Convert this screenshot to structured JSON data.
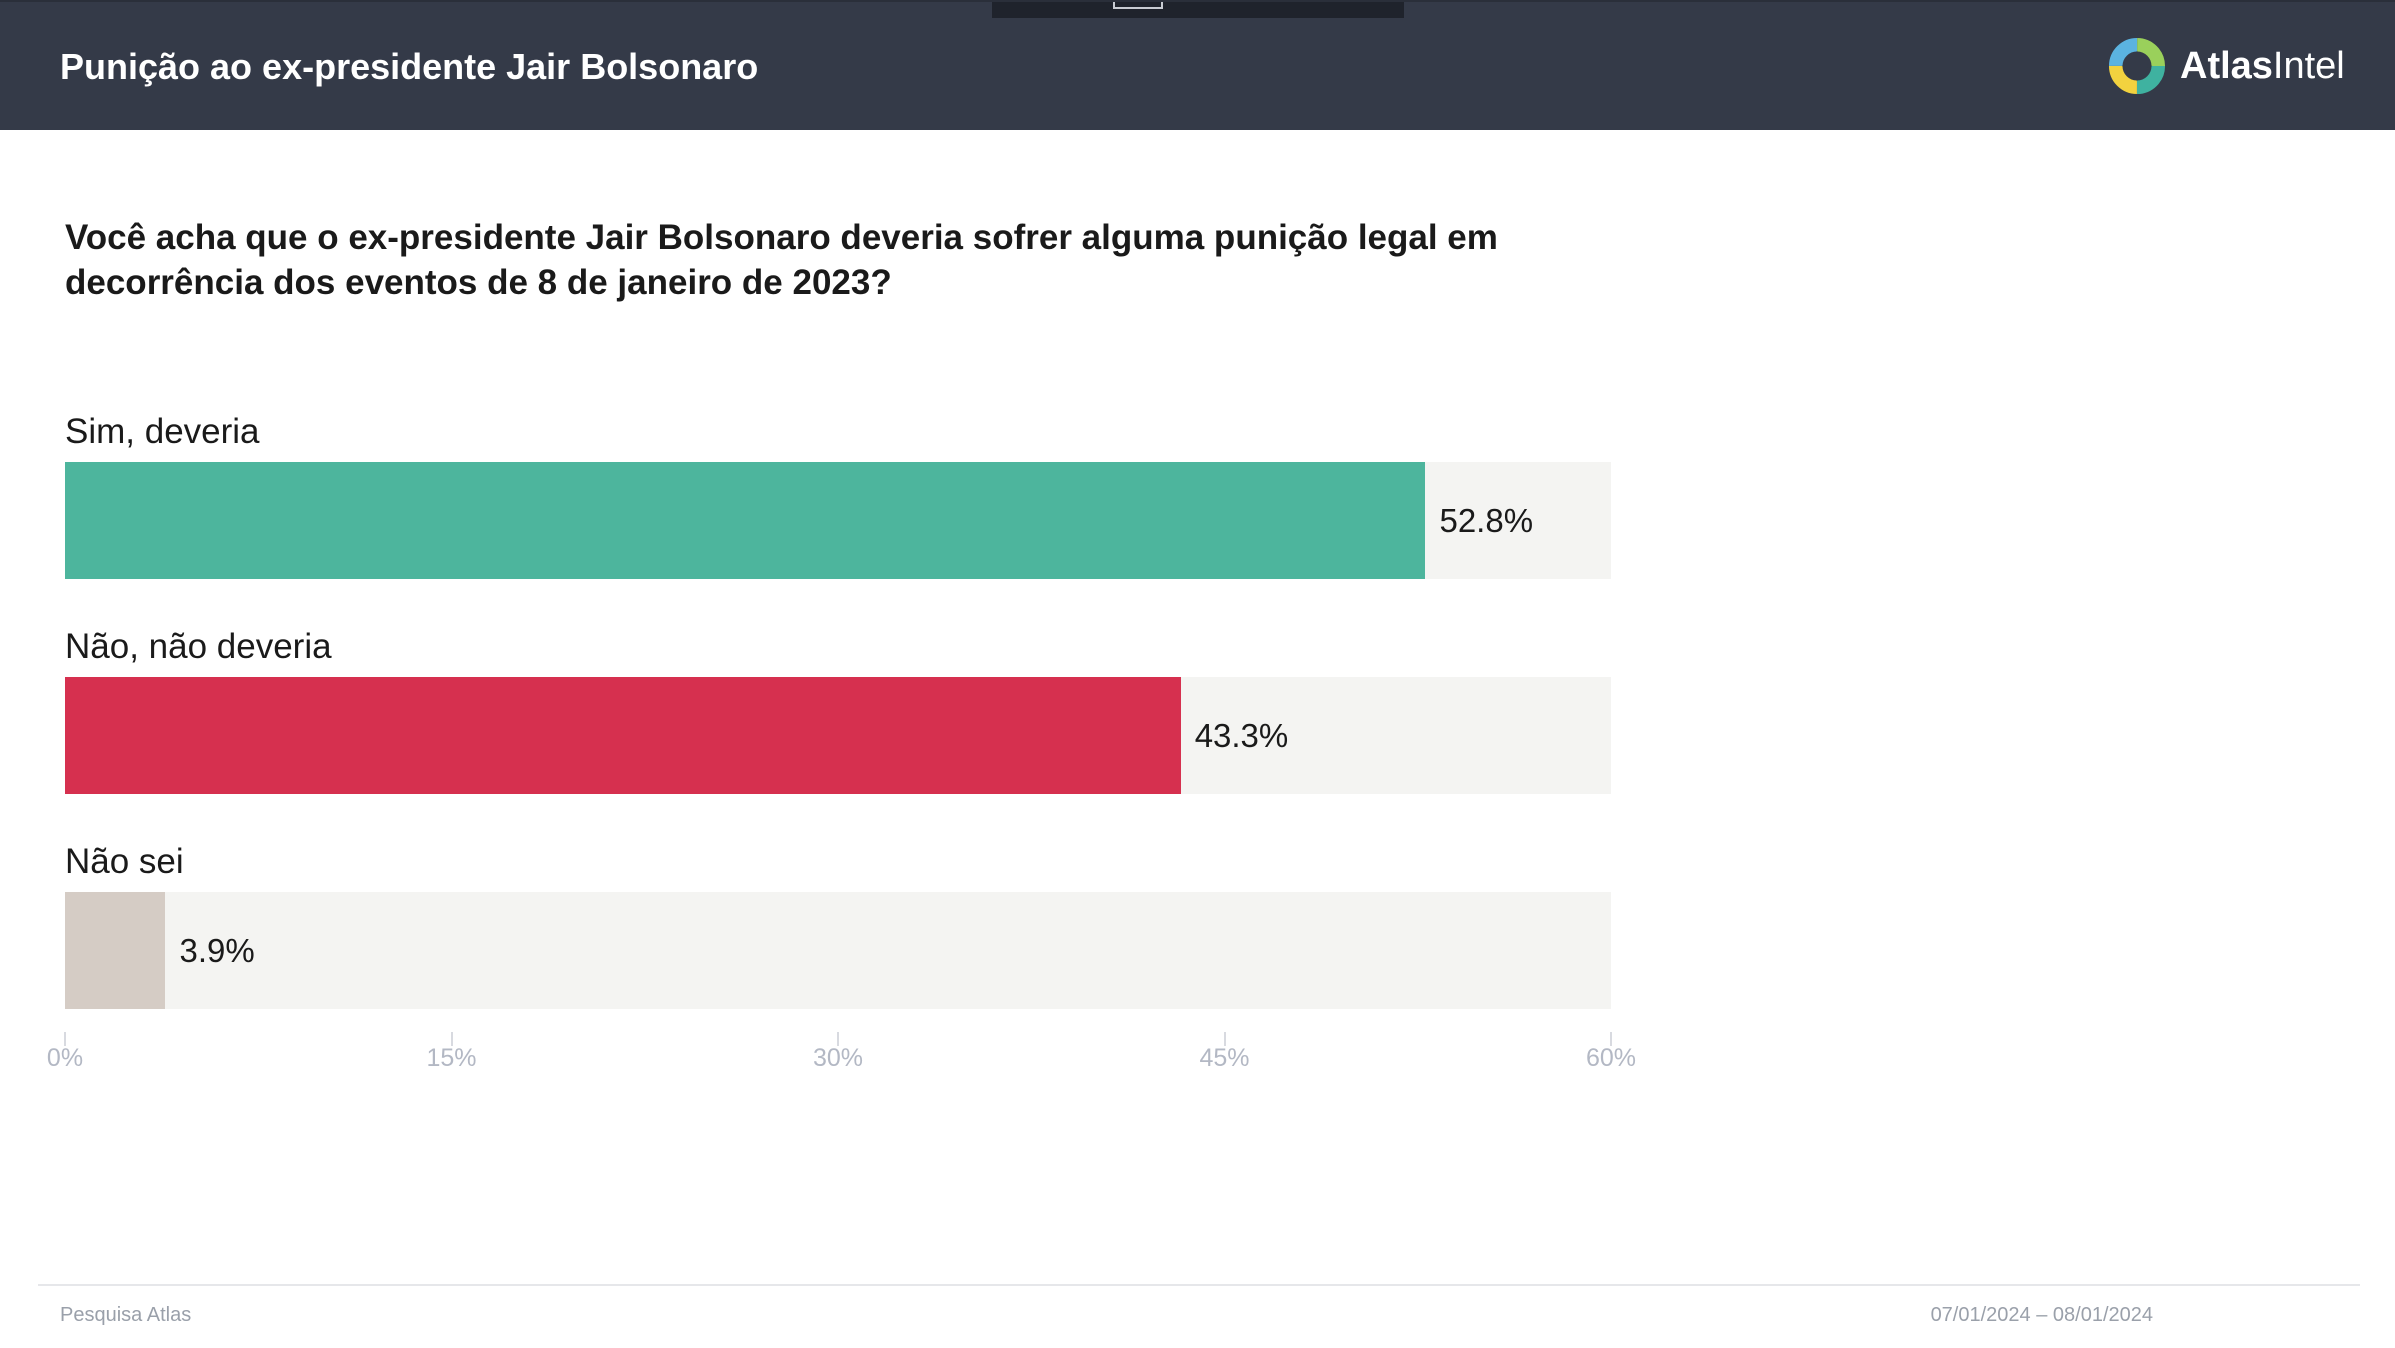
{
  "header": {
    "title": "Punição ao ex-presidente Jair Bolsonaro",
    "logo": {
      "bold": "Atlas",
      "regular": "Intel",
      "colors": [
        "#3fb2a0",
        "#f2d23f",
        "#5bb3e0",
        "#9ad05b"
      ]
    }
  },
  "chart_data": {
    "type": "bar",
    "orientation": "horizontal",
    "title": "Você acha que o ex-presidente Jair Bolsonaro deveria sofrer alguma punição legal em decorrência dos eventos de 8 de janeiro de 2023?",
    "categories": [
      "Sim, deveria",
      "Não, não deveria",
      "Não sei"
    ],
    "values": [
      52.8,
      43.3,
      3.9
    ],
    "value_labels": [
      "52.8%",
      "43.3%",
      "3.9%"
    ],
    "colors": [
      "#4db59d",
      "#d6304f",
      "#d5ccc5"
    ],
    "xlim": [
      0,
      60
    ],
    "ticks": [
      0,
      15,
      30,
      45,
      60
    ],
    "tick_labels": [
      "0%",
      "15%",
      "30%",
      "45%",
      "60%"
    ],
    "grid": false
  },
  "footer": {
    "source": "Pesquisa Atlas",
    "dates": "07/01/2024 – 08/01/2024"
  }
}
